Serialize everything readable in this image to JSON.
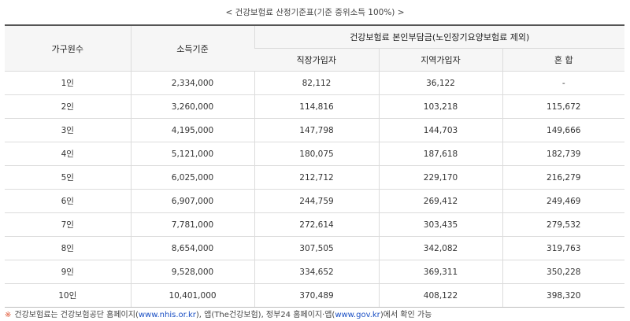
{
  "caption": "< 건강보험료 산정기준표(기준 중위소득 100%) >",
  "headers": {
    "household": "가구원수",
    "income": "소득기준",
    "premium_group": "건강보험료 본인부담금(노인장기요양보험료 제외)",
    "employee": "직장가입자",
    "regional": "지역가입자",
    "mixed": "혼 합"
  },
  "rows": [
    {
      "household": "1인",
      "income": "2,334,000",
      "employee": "82,112",
      "regional": "36,122",
      "mixed": "-"
    },
    {
      "household": "2인",
      "income": "3,260,000",
      "employee": "114,816",
      "regional": "103,218",
      "mixed": "115,672"
    },
    {
      "household": "3인",
      "income": "4,195,000",
      "employee": "147,798",
      "regional": "144,703",
      "mixed": "149,666"
    },
    {
      "household": "4인",
      "income": "5,121,000",
      "employee": "180,075",
      "regional": "187,618",
      "mixed": "182,739"
    },
    {
      "household": "5인",
      "income": "6,025,000",
      "employee": "212,712",
      "regional": "229,170",
      "mixed": "216,279"
    },
    {
      "household": "6인",
      "income": "6,907,000",
      "employee": "244,759",
      "regional": "269,412",
      "mixed": "249,469"
    },
    {
      "household": "7인",
      "income": "7,781,000",
      "employee": "272,614",
      "regional": "303,435",
      "mixed": "279,532"
    },
    {
      "household": "8인",
      "income": "8,654,000",
      "employee": "307,505",
      "regional": "342,082",
      "mixed": "319,763"
    },
    {
      "household": "9인",
      "income": "9,528,000",
      "employee": "334,652",
      "regional": "369,311",
      "mixed": "350,228"
    },
    {
      "household": "10인",
      "income": "10,401,000",
      "employee": "370,489",
      "regional": "408,122",
      "mixed": "398,320"
    }
  ],
  "note": {
    "mark": "※",
    "text_1": "건강보험료는 건강보험공단 홈페이지(",
    "link_1": "www.nhis.or.kr",
    "text_2": "), 앱(The건강보험), 정부24 홈페이지·앱(",
    "link_2": "www.gov.kr",
    "text_3": ")에서 확인 가능"
  }
}
